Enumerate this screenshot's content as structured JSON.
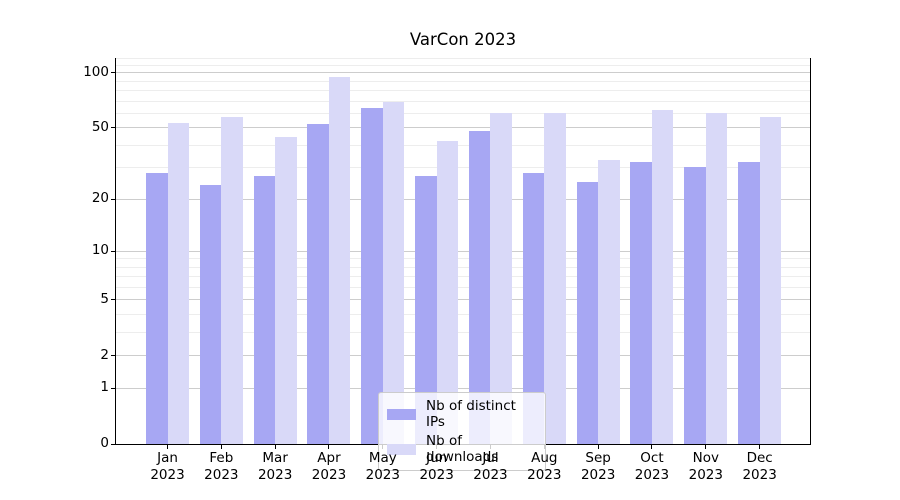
{
  "title": "VarCon 2023",
  "chart_data": {
    "type": "bar",
    "title": "VarCon 2023",
    "categories": [
      "Jan",
      "Feb",
      "Mar",
      "Apr",
      "May",
      "Jun",
      "Jul",
      "Aug",
      "Sep",
      "Oct",
      "Nov",
      "Dec"
    ],
    "x_tick_labels": [
      "Jan\n2023",
      "Feb\n2023",
      "Mar\n2023",
      "Apr\n2023",
      "May\n2023",
      "Jun\n2023",
      "Jul\n2023",
      "Aug\n2023",
      "Sep\n2023",
      "Oct\n2023",
      "Nov\n2023",
      "Dec\n2023"
    ],
    "series": [
      {
        "name": "Nb of distinct IPs",
        "color": "#a7a7f3",
        "values": [
          28,
          24,
          27,
          52,
          64,
          27,
          48,
          28,
          25,
          32,
          30,
          32
        ]
      },
      {
        "name": "Nb of downloads",
        "color": "#d9d9f8",
        "values": [
          53,
          57,
          44,
          95,
          69,
          42,
          60,
          60,
          33,
          62,
          60,
          57
        ]
      }
    ],
    "y_scale": "log1p",
    "y_ticks": [
      0,
      1,
      2,
      5,
      10,
      20,
      50,
      100
    ],
    "y_minor_gridlines": [
      3,
      4,
      6,
      7,
      8,
      9,
      30,
      40,
      60,
      70,
      80,
      90,
      110,
      120
    ],
    "ylim": [
      0,
      121
    ],
    "grid": true,
    "legend_position": "lower center"
  },
  "colors": {
    "bar_distinct_ips": "#a7a7f3",
    "bar_downloads": "#d9d9f8",
    "grid_major": "#cdcdcd",
    "grid_minor": "#ededed",
    "axis": "#000000",
    "legend_border": "#cccccc",
    "background": "#ffffff"
  }
}
